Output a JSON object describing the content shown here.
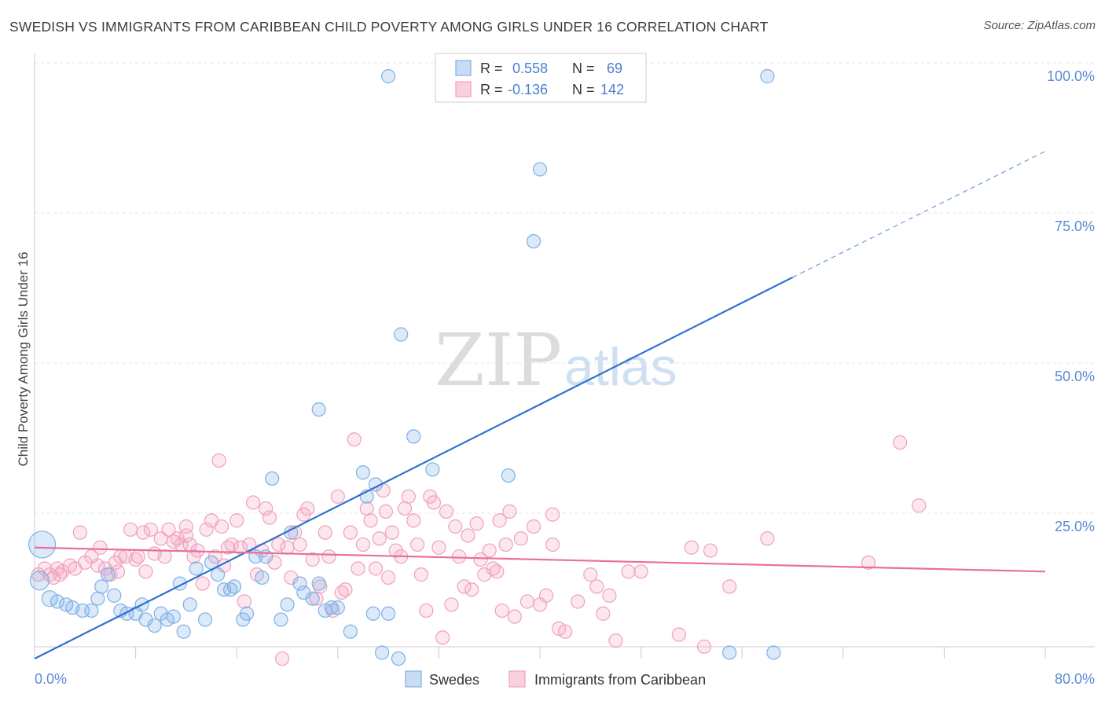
{
  "header": {
    "title": "SWEDISH VS IMMIGRANTS FROM CARIBBEAN CHILD POVERTY AMONG GIRLS UNDER 16 CORRELATION CHART",
    "source": "Source: ZipAtlas.com"
  },
  "watermark": {
    "zip": "ZIP",
    "atlas": "atlas"
  },
  "chart_data": {
    "type": "scatter",
    "ylabel": "Child Poverty Among Girls Under 16",
    "xlim": [
      0,
      80
    ],
    "ylim": [
      0,
      100
    ],
    "x_tick_labels": [
      "0.0%",
      "80.0%"
    ],
    "y_ticks": [
      {
        "value": 100,
        "label": "100.0%"
      },
      {
        "value": 75,
        "label": "75.0%"
      },
      {
        "value": 50,
        "label": "50.0%"
      },
      {
        "value": 25,
        "label": "25.0%"
      }
    ],
    "grid": true,
    "colors": {
      "swedes": "#7fb0e6",
      "caribbean": "#f0a0bb",
      "swedes_line": "#2e6fcf",
      "caribbean_line": "#e8709a"
    },
    "legend_box": {
      "rows": [
        {
          "r_label": "R =",
          "r_value": "0.558",
          "n_label": "N =",
          "n_value": "69"
        },
        {
          "r_label": "R =",
          "r_value": "-0.136",
          "n_label": "N =",
          "n_value": "142"
        }
      ]
    },
    "bottom_legend": [
      "Swedes",
      "Immigrants from Caribbean"
    ],
    "series": [
      {
        "name": "Swedes",
        "trend": {
          "x0": 0,
          "y0": 3,
          "x1": 60,
          "y1": 66.5,
          "dash_to_x": 80,
          "dash_to_y": 87.5
        },
        "points": [
          [
            0.6,
            22
          ],
          [
            0.4,
            16
          ],
          [
            1.2,
            13
          ],
          [
            1.8,
            12.5
          ],
          [
            2.5,
            12
          ],
          [
            3,
            11.5
          ],
          [
            3.8,
            11
          ],
          [
            4.5,
            11
          ],
          [
            5,
            13
          ],
          [
            5.3,
            15
          ],
          [
            5.8,
            17
          ],
          [
            6.3,
            13.5
          ],
          [
            6.8,
            11
          ],
          [
            7.3,
            10.5
          ],
          [
            8,
            10.5
          ],
          [
            8.5,
            12
          ],
          [
            8.8,
            9.5
          ],
          [
            9.5,
            8.5
          ],
          [
            10,
            10.5
          ],
          [
            10.5,
            9.5
          ],
          [
            11,
            10
          ],
          [
            11.5,
            15.5
          ],
          [
            11.8,
            7.5
          ],
          [
            12.3,
            12
          ],
          [
            12.8,
            18
          ],
          [
            13.5,
            9.5
          ],
          [
            14,
            19
          ],
          [
            14.5,
            17
          ],
          [
            15,
            14.5
          ],
          [
            15.5,
            14.5
          ],
          [
            15.8,
            15
          ],
          [
            16.5,
            9.5
          ],
          [
            16.8,
            10.5
          ],
          [
            17.5,
            20
          ],
          [
            18,
            16.5
          ],
          [
            18.3,
            20
          ],
          [
            18.8,
            33
          ],
          [
            19.5,
            9.5
          ],
          [
            20,
            12
          ],
          [
            20.3,
            24
          ],
          [
            21,
            15.5
          ],
          [
            21.3,
            14
          ],
          [
            22,
            13
          ],
          [
            22.5,
            15.5
          ],
          [
            23,
            11
          ],
          [
            23.5,
            11.5
          ],
          [
            24,
            11.5
          ],
          [
            25,
            7.5
          ],
          [
            26,
            34
          ],
          [
            26.3,
            30
          ],
          [
            26.8,
            10.5
          ],
          [
            27.5,
            4
          ],
          [
            28,
            10.5
          ],
          [
            28.8,
            3
          ],
          [
            30,
            40
          ],
          [
            31.5,
            34.5
          ],
          [
            22.5,
            44.5
          ],
          [
            29,
            57
          ],
          [
            28,
            100
          ],
          [
            37.5,
            33.5
          ],
          [
            40,
            84.5
          ],
          [
            39.5,
            72.5
          ],
          [
            40,
            100
          ],
          [
            43.5,
            100
          ],
          [
            55,
            4
          ],
          [
            58,
            100
          ],
          [
            58.5,
            4
          ],
          [
            27,
            32
          ],
          [
            36,
            100
          ]
        ]
      },
      {
        "name": "Immigrants from Caribbean",
        "trend": {
          "x0": 0,
          "y0": 21.5,
          "x1": 80,
          "y1": 17.5
        },
        "points": [
          [
            0.3,
            17
          ],
          [
            0.8,
            18
          ],
          [
            1.2,
            17
          ],
          [
            1.5,
            16.5
          ],
          [
            1.8,
            18
          ],
          [
            2.2,
            17.5
          ],
          [
            2.8,
            18.5
          ],
          [
            3.2,
            18
          ],
          [
            3.6,
            24
          ],
          [
            4,
            19
          ],
          [
            4.5,
            20
          ],
          [
            5,
            18.5
          ],
          [
            5.2,
            21.5
          ],
          [
            5.6,
            18
          ],
          [
            6,
            17
          ],
          [
            6.4,
            19
          ],
          [
            6.8,
            20
          ],
          [
            7.2,
            20
          ],
          [
            7.6,
            24.5
          ],
          [
            8,
            19.5
          ],
          [
            8.2,
            20
          ],
          [
            8.6,
            24
          ],
          [
            8.8,
            17.5
          ],
          [
            9.2,
            24.5
          ],
          [
            9.5,
            20.5
          ],
          [
            10,
            23
          ],
          [
            10.3,
            20
          ],
          [
            10.6,
            24.5
          ],
          [
            11,
            22.5
          ],
          [
            11.3,
            23
          ],
          [
            11.6,
            22
          ],
          [
            12,
            23.5
          ],
          [
            12.3,
            22
          ],
          [
            12.6,
            20
          ],
          [
            12.9,
            21
          ],
          [
            13.3,
            15.5
          ],
          [
            13.6,
            24.5
          ],
          [
            14,
            26
          ],
          [
            14.3,
            20
          ],
          [
            14.6,
            36
          ],
          [
            15,
            18.5
          ],
          [
            15.3,
            21.5
          ],
          [
            15.6,
            22
          ],
          [
            16,
            26
          ],
          [
            16.3,
            21.5
          ],
          [
            16.6,
            12.5
          ],
          [
            17,
            22
          ],
          [
            17.3,
            29
          ],
          [
            17.6,
            17
          ],
          [
            18,
            21
          ],
          [
            18.3,
            28
          ],
          [
            18.6,
            26.5
          ],
          [
            19,
            19
          ],
          [
            19.3,
            22
          ],
          [
            19.6,
            3
          ],
          [
            20,
            21.5
          ],
          [
            20.3,
            16.5
          ],
          [
            20.6,
            24
          ],
          [
            21,
            22
          ],
          [
            21.3,
            27
          ],
          [
            21.6,
            28
          ],
          [
            22,
            19.5
          ],
          [
            22.3,
            13
          ],
          [
            22.6,
            15
          ],
          [
            23,
            24
          ],
          [
            23.3,
            20
          ],
          [
            23.6,
            11
          ],
          [
            24,
            30
          ],
          [
            24.3,
            14
          ],
          [
            24.6,
            14.5
          ],
          [
            25,
            24
          ],
          [
            25.3,
            39.5
          ],
          [
            25.6,
            18
          ],
          [
            26,
            22
          ],
          [
            26.3,
            28
          ],
          [
            26.6,
            26
          ],
          [
            27,
            18
          ],
          [
            27.3,
            23
          ],
          [
            27.6,
            31
          ],
          [
            28,
            16.5
          ],
          [
            28.3,
            24
          ],
          [
            28.6,
            21
          ],
          [
            29,
            20
          ],
          [
            29.3,
            28
          ],
          [
            29.6,
            30
          ],
          [
            30,
            26
          ],
          [
            30.3,
            22
          ],
          [
            30.6,
            17
          ],
          [
            31,
            11
          ],
          [
            31.3,
            30
          ],
          [
            31.6,
            29
          ],
          [
            32,
            21.5
          ],
          [
            32.3,
            6.5
          ],
          [
            32.6,
            27.5
          ],
          [
            33,
            12
          ],
          [
            33.3,
            25
          ],
          [
            33.6,
            20
          ],
          [
            34,
            15
          ],
          [
            34.3,
            23.5
          ],
          [
            34.6,
            14.5
          ],
          [
            35,
            25.5
          ],
          [
            35.3,
            19.5
          ],
          [
            35.6,
            17
          ],
          [
            36,
            21
          ],
          [
            36.3,
            18
          ],
          [
            36.6,
            17.5
          ],
          [
            37,
            11
          ],
          [
            37.3,
            22
          ],
          [
            37.6,
            27.5
          ],
          [
            38,
            10
          ],
          [
            38.5,
            23
          ],
          [
            39,
            12.5
          ],
          [
            39.5,
            25
          ],
          [
            40,
            12
          ],
          [
            40.5,
            13.5
          ],
          [
            41,
            22
          ],
          [
            41.5,
            8
          ],
          [
            42,
            7.5
          ],
          [
            43,
            12.5
          ],
          [
            44,
            17
          ],
          [
            44.5,
            15
          ],
          [
            45,
            10.5
          ],
          [
            45.5,
            13.5
          ],
          [
            46,
            6
          ],
          [
            47,
            17.5
          ],
          [
            48,
            17.5
          ],
          [
            51,
            7
          ],
          [
            52,
            21.5
          ],
          [
            53,
            5
          ],
          [
            53.5,
            21
          ],
          [
            55,
            15
          ],
          [
            58,
            23
          ],
          [
            66,
            19
          ],
          [
            68.5,
            39
          ],
          [
            70,
            28.5
          ],
          [
            2,
            17
          ],
          [
            6.6,
            17.5
          ],
          [
            14.8,
            25
          ],
          [
            12,
            25
          ],
          [
            27.8,
            27.5
          ],
          [
            36.8,
            26
          ],
          [
            41,
            27
          ]
        ]
      }
    ]
  }
}
